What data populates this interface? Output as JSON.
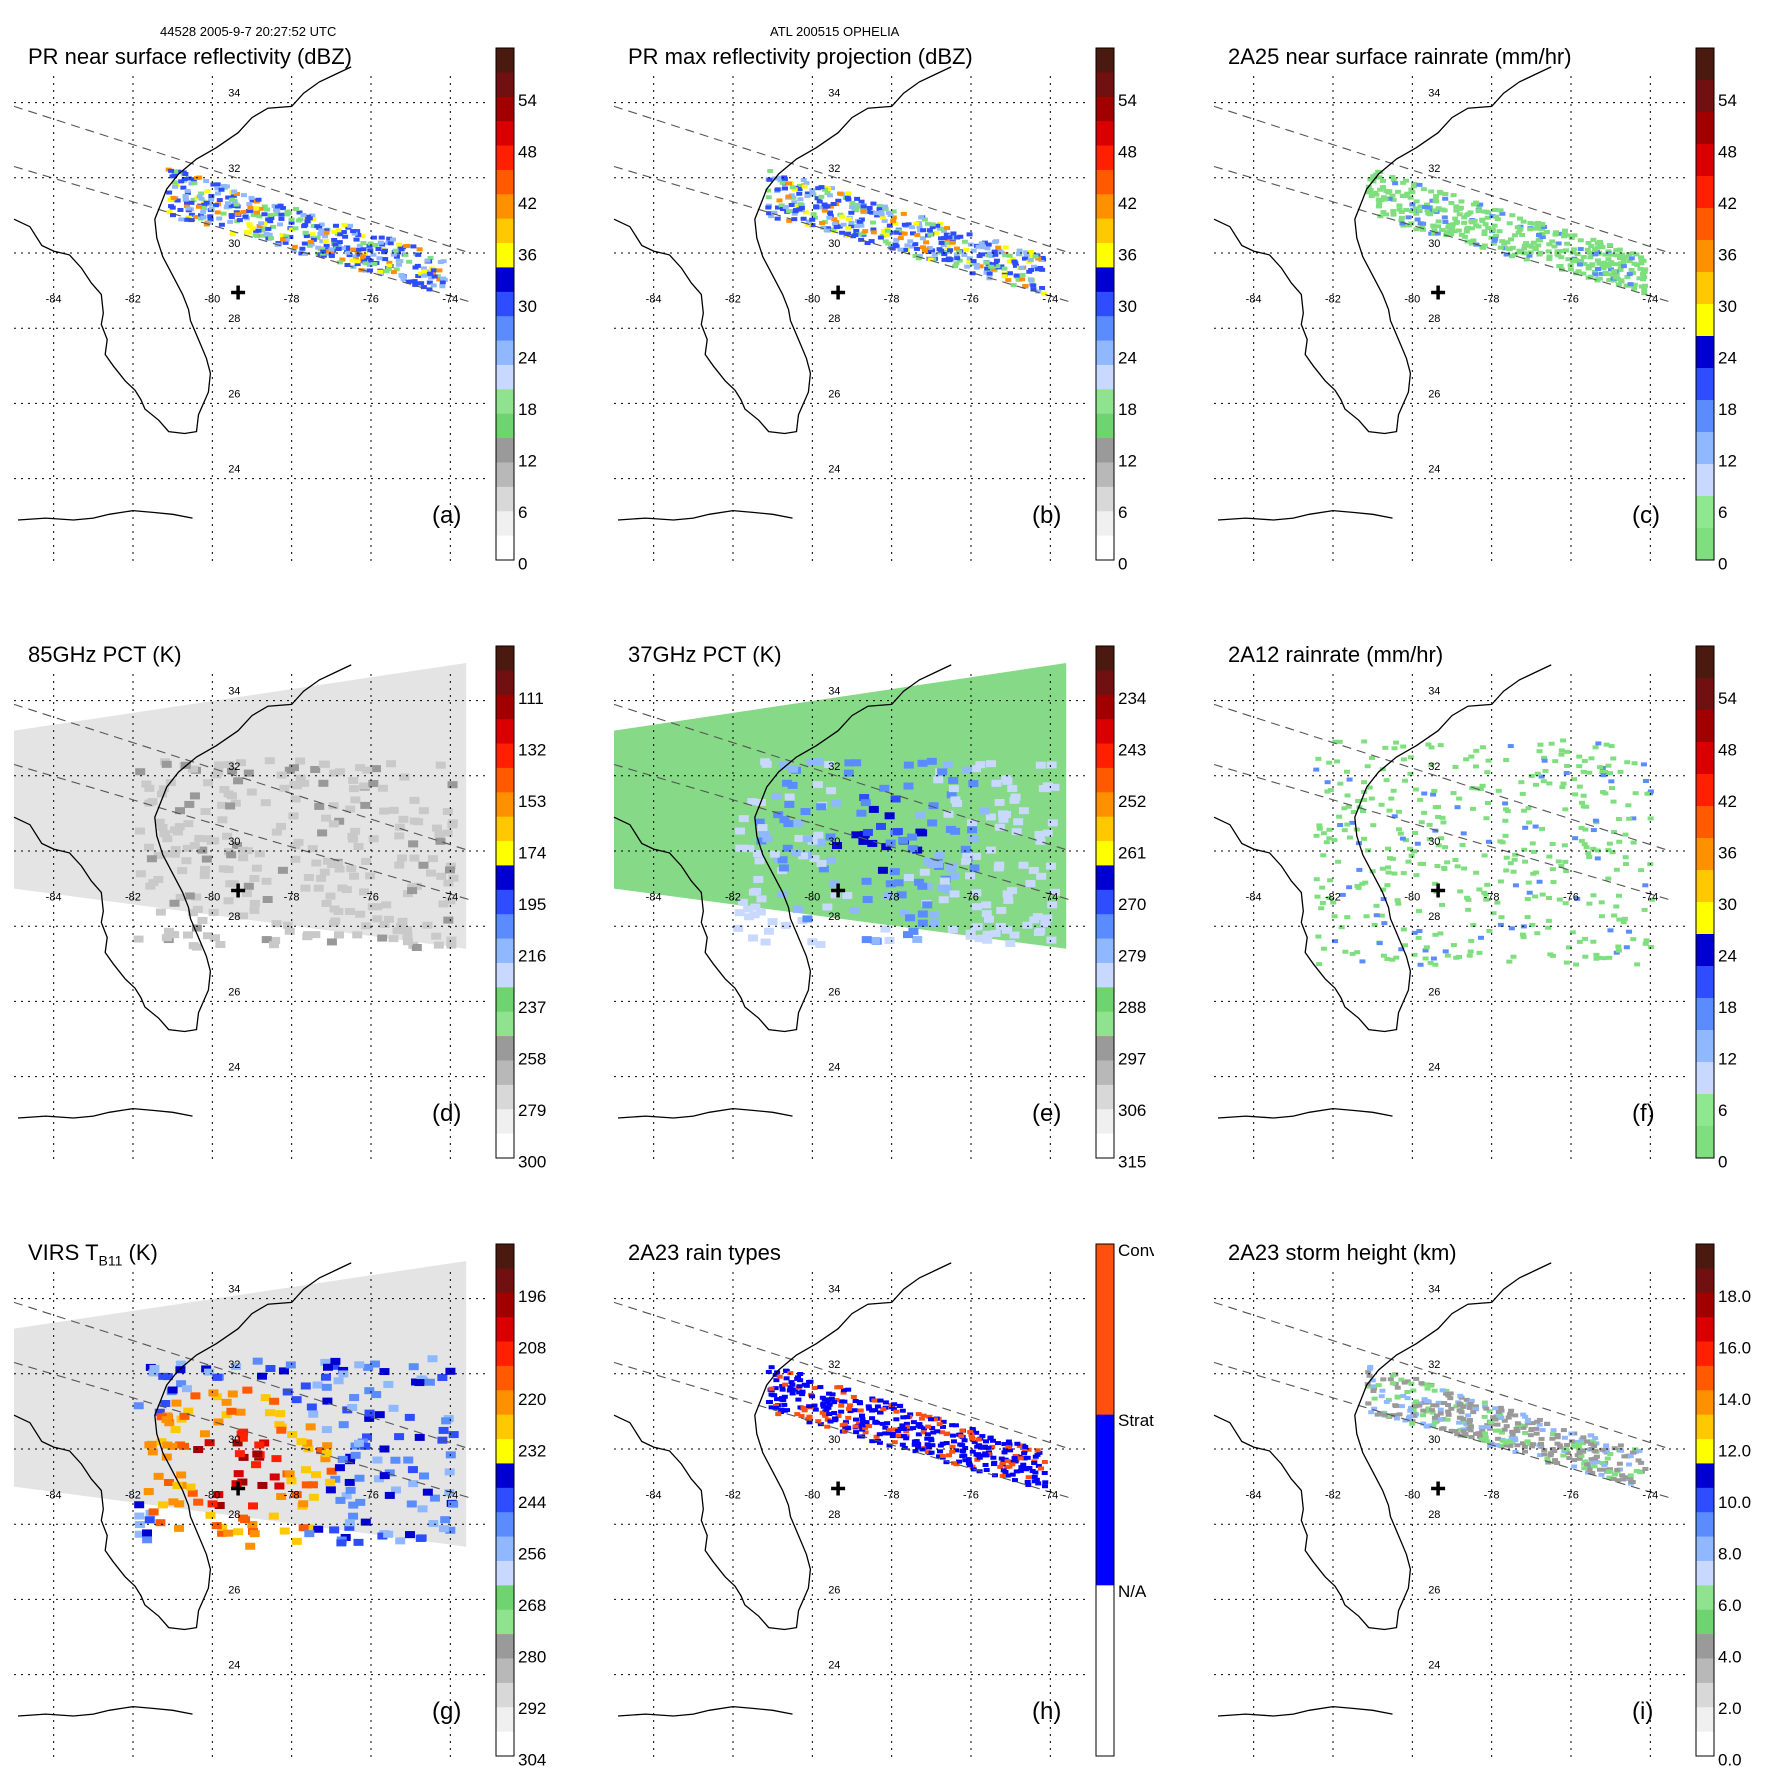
{
  "header": {
    "left": "44528 2005-9-7 20:27:52 UTC",
    "center": "ATL 200515 OPHELIA"
  },
  "map_ticks": {
    "lons": [
      "-84",
      "-82",
      "-80",
      "-78",
      "-76",
      "-74"
    ],
    "lats": [
      "34",
      "32",
      "30",
      "28",
      "26",
      "24"
    ]
  },
  "panels": [
    {
      "label": "(a)",
      "title": "PR near surface reflectivity (dBZ)",
      "colorbar": "reflectivity",
      "ticks": [
        "54",
        "48",
        "42",
        "36",
        "30",
        "24",
        "18",
        "12",
        "6",
        "0"
      ],
      "field": "swath-reflectivity"
    },
    {
      "label": "(b)",
      "title": "PR max reflectivity projection (dBZ)",
      "colorbar": "reflectivity",
      "ticks": [
        "54",
        "48",
        "42",
        "36",
        "30",
        "24",
        "18",
        "12",
        "6",
        "0"
      ],
      "field": "swath-maxref"
    },
    {
      "label": "(c)",
      "title": "2A25 near surface rainrate (mm/hr)",
      "colorbar": "rainrate",
      "ticks": [
        "54",
        "48",
        "42",
        "36",
        "30",
        "24",
        "18",
        "12",
        "6",
        "0"
      ],
      "field": "swath-rain"
    },
    {
      "label": "(d)",
      "title": "85GHz PCT (K)",
      "colorbar": "pct85",
      "ticks": [
        "111",
        "132",
        "153",
        "174",
        "195",
        "216",
        "237",
        "258",
        "279",
        "300"
      ],
      "field": "tmi-85"
    },
    {
      "label": "(e)",
      "title": "37GHz PCT (K)",
      "colorbar": "pct37",
      "ticks": [
        "234",
        "243",
        "252",
        "261",
        "270",
        "279",
        "288",
        "297",
        "306",
        "315"
      ],
      "field": "tmi-37"
    },
    {
      "label": "(f)",
      "title": "2A12 rainrate (mm/hr)",
      "colorbar": "rainrate",
      "ticks": [
        "54",
        "48",
        "42",
        "36",
        "30",
        "24",
        "18",
        "12",
        "6",
        "0"
      ],
      "field": "tmi-rain"
    },
    {
      "label": "(g)",
      "title": "VIRS T",
      "title_sub": "B11",
      "title_tail": " (K)",
      "colorbar": "virs",
      "ticks": [
        "196",
        "208",
        "220",
        "232",
        "244",
        "256",
        "268",
        "280",
        "292",
        "304"
      ],
      "field": "virs"
    },
    {
      "label": "(h)",
      "title": "2A23 rain types",
      "colorbar": "raintype",
      "ticks": [
        "Conv",
        "Strat",
        "N/A"
      ],
      "field": "swath-raintype"
    },
    {
      "label": "(i)",
      "title": "2A23 storm height (km)",
      "colorbar": "height",
      "ticks": [
        "18.0",
        "16.0",
        "14.0",
        "12.0",
        "10.0",
        "8.0",
        "6.0",
        "4.0",
        "2.0",
        "0.0"
      ],
      "field": "swath-height"
    }
  ],
  "colors": {
    "reflectivity": [
      "#ffffff",
      "#f0f0f0",
      "#d8d8d8",
      "#b8b8b8",
      "#9a9a9a",
      "#6fd46f",
      "#8fe38f",
      "#c8d8ff",
      "#90b8ff",
      "#5a8cff",
      "#2d4dff",
      "#0000d0",
      "#ffff00",
      "#ffc800",
      "#ff9000",
      "#ff5a00",
      "#ff2000",
      "#d80000",
      "#a00000",
      "#701010",
      "#4a1a10"
    ],
    "rainrate": [
      "#7fdf7f",
      "#8fe88f",
      "#c8d8ff",
      "#90b8ff",
      "#5a8cff",
      "#2d4dff",
      "#0000d0",
      "#ffff00",
      "#ffc800",
      "#ff9000",
      "#ff5a00",
      "#ff2000",
      "#d80000",
      "#a00000",
      "#701010",
      "#4a1a10"
    ],
    "pct": [
      "#4a1a10",
      "#701010",
      "#a00000",
      "#d80000",
      "#ff2000",
      "#ff5a00",
      "#ff9000",
      "#ffc800",
      "#ffff00",
      "#0000d0",
      "#2d4dff",
      "#5a8cff",
      "#90b8ff",
      "#c8d8ff",
      "#6fd46f",
      "#8fe38f",
      "#9a9a9a",
      "#b8b8b8",
      "#d8d8d8",
      "#f0f0f0",
      "#ffffff"
    ],
    "raintype": [
      "#ff5010",
      "#0000ff",
      "#ffffff"
    ],
    "coast": "#000000",
    "center_mark": "#000000"
  }
}
